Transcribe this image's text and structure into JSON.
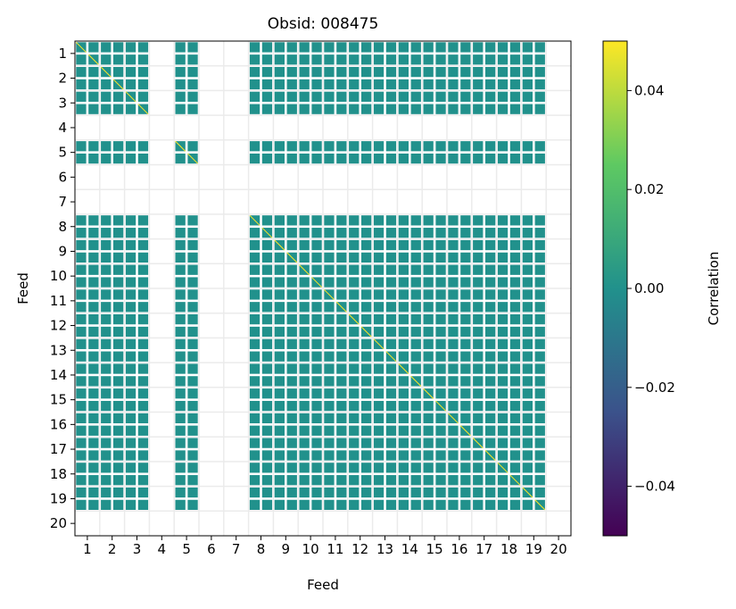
{
  "chart_data": {
    "type": "heatmap",
    "title": "Obsid: 008475",
    "xlabel": "Feed",
    "ylabel": "Feed",
    "x_ticks": [
      "1",
      "2",
      "3",
      "4",
      "5",
      "6",
      "7",
      "8",
      "9",
      "10",
      "11",
      "12",
      "13",
      "14",
      "15",
      "16",
      "17",
      "18",
      "19",
      "20"
    ],
    "y_ticks": [
      "1",
      "2",
      "3",
      "4",
      "5",
      "6",
      "7",
      "8",
      "9",
      "10",
      "11",
      "12",
      "13",
      "14",
      "15",
      "16",
      "17",
      "18",
      "19",
      "20"
    ],
    "active_feeds": [
      1,
      2,
      3,
      5,
      8,
      9,
      10,
      11,
      12,
      13,
      14,
      15,
      16,
      17,
      18,
      19
    ],
    "off_diagonal_value": 0.0,
    "diagonal_value": 0.05,
    "sub_blocks_per_feed": 2,
    "colorbar": {
      "label": "Correlation",
      "range": [
        -0.05,
        0.05
      ],
      "ticks": [
        "0.04",
        "0.02",
        "0.00",
        "−0.02",
        "−0.04"
      ],
      "tick_values": [
        0.04,
        0.02,
        0,
        -0.02,
        -0.04
      ],
      "colormap": "viridis"
    },
    "grid": true
  }
}
